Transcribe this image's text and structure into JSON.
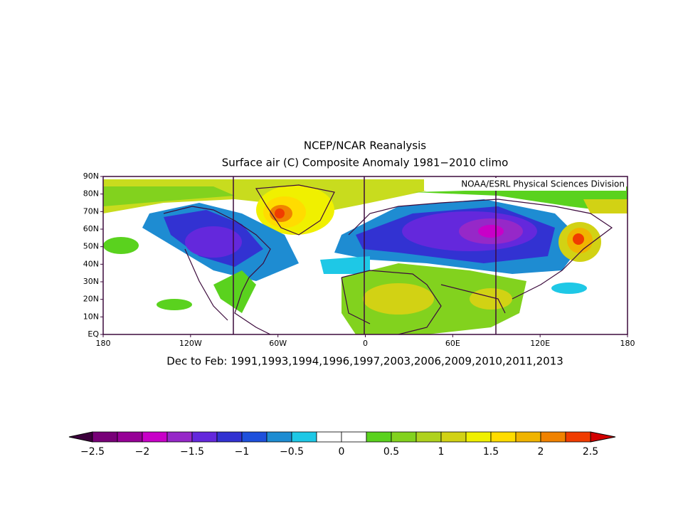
{
  "title": "NCEP/NCAR Reanalysis",
  "subtitle": "Surface air (C) Composite Anomaly 1981−2010 climo",
  "credit": "NOAA/ESRL Physical Sciences Division",
  "lat_labels": [
    "EQ",
    "10N",
    "20N",
    "30N",
    "40N",
    "50N",
    "60N",
    "70N",
    "80N",
    "90N"
  ],
  "lon_labels": [
    "180",
    "120W",
    "60W",
    "0",
    "60E",
    "120E",
    "180"
  ],
  "footer": "Dec to Feb: 1991,1993,1994,1996,1997,2003,2006,2009,2010,2011,2013",
  "colorbar": {
    "labels": [
      "−2.5",
      "−2",
      "−1.5",
      "−1",
      "−0.5",
      "0",
      "0.5",
      "1",
      "1.5",
      "2",
      "2.5"
    ],
    "colors": [
      "#780078",
      "#960096",
      "#c800c8",
      "#9628c8",
      "#6428dc",
      "#3232d2",
      "#1e50dc",
      "#1e8cd2",
      "#1ec8e6",
      "#ffffff",
      "#ffffff",
      "#5ad21e",
      "#82d21e",
      "#afd21e",
      "#d2d214",
      "#f0f000",
      "#ffdc00",
      "#f0b400",
      "#f08200",
      "#f03c00"
    ]
  }
}
